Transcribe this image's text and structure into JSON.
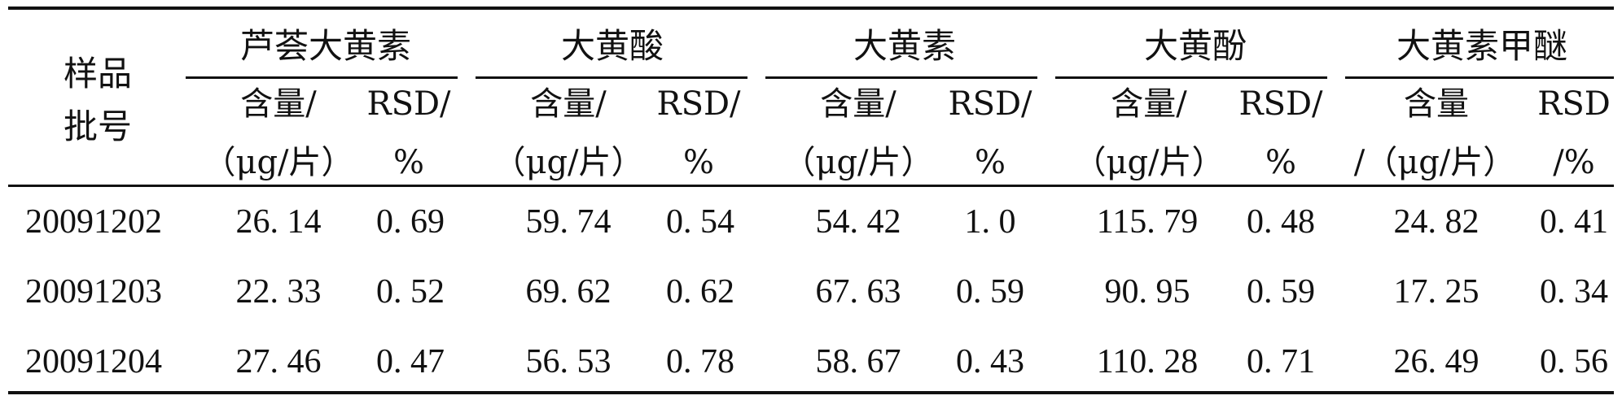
{
  "table": {
    "corner_header": [
      "样品",
      "批号"
    ],
    "groups": [
      {
        "name": "芦荟大黄素",
        "content_header": [
          "含量/",
          "（μg/片）"
        ],
        "rsd_header": [
          "RSD/",
          "%"
        ]
      },
      {
        "name": "大黄酸",
        "content_header": [
          "含量/",
          "（μg/片）"
        ],
        "rsd_header": [
          "RSD/",
          "%"
        ]
      },
      {
        "name": "大黄素",
        "content_header": [
          "含量/",
          "（μg/片）"
        ],
        "rsd_header": [
          "RSD/",
          "%"
        ]
      },
      {
        "name": "大黄酚",
        "content_header": [
          "含量/",
          "（μg/片）"
        ],
        "rsd_header": [
          "RSD/",
          "%"
        ]
      },
      {
        "name": "大黄素甲醚",
        "content_header": [
          "含量",
          "/（μg/片）"
        ],
        "rsd_header": [
          "RSD",
          "/%"
        ]
      }
    ],
    "rows": [
      {
        "batch": "20091202",
        "values": [
          "26. 14",
          "0. 69",
          "59. 74",
          "0. 54",
          "54. 42",
          "1. 0",
          "115. 79",
          "0. 48",
          "24. 82",
          "0. 41"
        ]
      },
      {
        "batch": "20091203",
        "values": [
          "22. 33",
          "0. 52",
          "69. 62",
          "0. 62",
          "67. 63",
          "0. 59",
          "90. 95",
          "0. 59",
          "17. 25",
          "0. 34"
        ]
      },
      {
        "batch": "20091204",
        "values": [
          "27. 46",
          "0. 47",
          "56. 53",
          "0. 78",
          "58. 67",
          "0. 43",
          "110. 28",
          "0. 71",
          "26. 49",
          "0. 56"
        ]
      }
    ]
  }
}
